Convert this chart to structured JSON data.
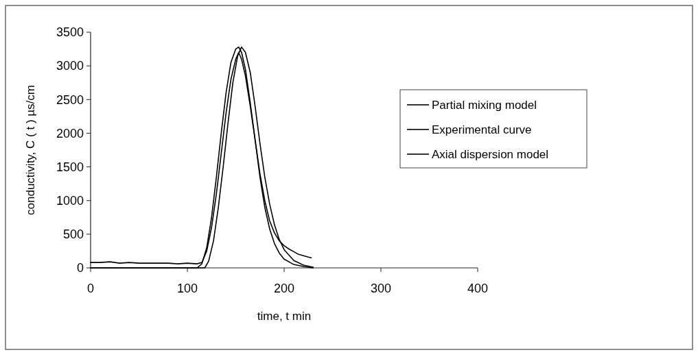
{
  "chart_data": {
    "type": "line",
    "xlabel": "time, t min",
    "ylabel": "conductivity, C ( t ) µs/cm",
    "xlim": [
      0,
      400
    ],
    "xticks": [
      0,
      100,
      200,
      300,
      400
    ],
    "ylim": [
      0,
      3500
    ],
    "yticks": [
      0,
      500,
      1000,
      1500,
      2000,
      2500,
      3000,
      3500
    ],
    "grid": false,
    "legend": "right",
    "line_style": "solid",
    "series": [
      {
        "name": "Partial mixing model",
        "color": "#000000",
        "x": [
          0,
          100,
          110,
          115,
          120,
          125,
          130,
          135,
          140,
          145,
          150,
          153,
          156,
          160,
          165,
          170,
          175,
          180,
          185,
          190,
          195,
          200,
          210,
          220,
          230
        ],
        "values": [
          0,
          0,
          0,
          60,
          300,
          750,
          1350,
          2000,
          2600,
          3050,
          3250,
          3280,
          3200,
          2950,
          2450,
          1900,
          1350,
          900,
          580,
          360,
          220,
          130,
          50,
          20,
          0
        ]
      },
      {
        "name": "Experimental curve",
        "color": "#000000",
        "x": [
          0,
          10,
          20,
          30,
          40,
          50,
          60,
          70,
          80,
          90,
          100,
          110,
          115,
          120,
          125,
          130,
          135,
          140,
          145,
          150,
          153,
          156,
          160,
          165,
          170,
          175,
          180,
          185,
          190,
          195,
          200,
          205,
          210,
          215,
          220,
          225,
          228
        ],
        "values": [
          80,
          80,
          90,
          70,
          80,
          70,
          70,
          70,
          70,
          60,
          70,
          60,
          80,
          250,
          600,
          1100,
          1700,
          2300,
          2800,
          3100,
          3200,
          3100,
          2850,
          2400,
          1900,
          1400,
          1000,
          700,
          520,
          400,
          330,
          280,
          240,
          200,
          180,
          160,
          150
        ]
      },
      {
        "name": "Axial dispersion model",
        "color": "#000000",
        "x": [
          0,
          110,
          118,
          122,
          127,
          132,
          137,
          142,
          147,
          152,
          156,
          160,
          165,
          170,
          175,
          180,
          185,
          190,
          195,
          200,
          210,
          220,
          230
        ],
        "values": [
          0,
          0,
          0,
          100,
          400,
          900,
          1500,
          2150,
          2750,
          3150,
          3280,
          3200,
          2900,
          2400,
          1850,
          1350,
          950,
          640,
          420,
          270,
          110,
          40,
          10
        ]
      }
    ]
  }
}
